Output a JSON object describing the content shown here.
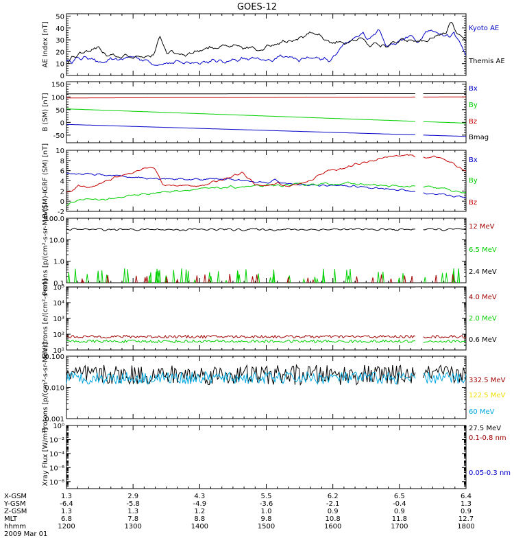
{
  "title": "GOES-12",
  "colors": {
    "black": "#000000",
    "blue": "#0000c8",
    "red": "#c80000",
    "green": "#00d000",
    "yellow": "#f0e000",
    "cyan": "#00a8e0",
    "darkred": "#a00000"
  },
  "chart_data": [
    {
      "type": "line",
      "ylabel": "AE Index [nT]",
      "yticks": [
        "0",
        "10",
        "20",
        "30",
        "40",
        "50"
      ],
      "ylim": [
        0,
        52
      ],
      "x_hours": [
        12.0,
        18.0
      ],
      "series": [
        {
          "name": "Kyoto AE",
          "color": "blue",
          "pattern": "kyoto"
        },
        {
          "name": "Themis AE",
          "color": "black",
          "pattern": "themis"
        }
      ]
    },
    {
      "type": "line",
      "ylabel": "B (SM) [nT]",
      "yticks": [
        "-50",
        "0",
        "50",
        "100",
        "150"
      ],
      "ylim": [
        -80,
        160
      ],
      "series": [
        {
          "name": "Bx",
          "color": "blue",
          "start": -8,
          "end": -55
        },
        {
          "name": "By",
          "color": "green",
          "start": 53,
          "end": -3
        },
        {
          "name": "Bz",
          "color": "red",
          "start": 96,
          "end": 100
        },
        {
          "name": "Bmag",
          "color": "black",
          "start": 112,
          "end": 113
        }
      ]
    },
    {
      "type": "line",
      "ylabel": "B (SM)-IGRF (SM) [nT]",
      "yticks": [
        "-2",
        "0",
        "2",
        "4",
        "6",
        "8",
        "10"
      ],
      "ylim": [
        -2,
        10
      ],
      "series": [
        {
          "name": "Bx",
          "color": "blue",
          "pattern": "dbx"
        },
        {
          "name": "By",
          "color": "green",
          "pattern": "dby"
        },
        {
          "name": "Bz",
          "color": "red",
          "pattern": "dbz"
        }
      ]
    },
    {
      "type": "line",
      "yscale": "log",
      "ylabel": "Protons [p/(cm²-s-sr-MeV)]",
      "yticks": [
        "0.1",
        "1.0",
        "10.0",
        "100.0"
      ],
      "ylim": [
        0.1,
        100
      ],
      "series": [
        {
          "name": "12 MeV",
          "color": "darkred"
        },
        {
          "name": "6.5 MeV",
          "color": "green"
        },
        {
          "name": "2.4 MeV",
          "color": "black",
          "level": 30
        }
      ]
    },
    {
      "type": "line",
      "yscale": "log",
      "ylabel": "Electrons [e/(cm²-s-sr)]",
      "yticks": [
        "10¹",
        "10²",
        "10³",
        "10⁴",
        "10⁵"
      ],
      "ylim": [
        10,
        100000
      ],
      "series": [
        {
          "name": "4.0 MeV",
          "color": "darkred",
          "level": 70
        },
        {
          "name": "2.0 MeV",
          "color": "green",
          "level": 35
        },
        {
          "name": "0.6 MeV",
          "color": "black",
          "level": 100000
        }
      ]
    },
    {
      "type": "line",
      "yscale": "log",
      "ylabel": "Protons [p/(cm²-s-sr-MeV)]",
      "yticks": [
        "0.001",
        "0.010",
        "0.100"
      ],
      "ylim": [
        0.001,
        0.1
      ],
      "series": [
        {
          "name": "332.5 MeV",
          "color": "darkred"
        },
        {
          "name": "122.5 MeV",
          "color": "yellow"
        },
        {
          "name": "60 MeV",
          "color": "cyan",
          "level": 0.02
        },
        {
          "name": "27.5 MeV",
          "color": "black",
          "level": 0.025
        }
      ]
    },
    {
      "type": "line",
      "yscale": "log",
      "ylabel": "Xray Flux [W/m²]",
      "yticks": [
        "10⁻⁸",
        "10⁻⁶",
        "10⁻⁴",
        "10⁻²",
        "10⁰"
      ],
      "ylim": [
        1e-09,
        1
      ],
      "series": [
        {
          "name": "0.1-0.8 nm",
          "color": "darkred"
        },
        {
          "name": "0.05-0.3 nm",
          "color": "blue"
        }
      ]
    }
  ],
  "orbit_table": {
    "rows": [
      {
        "label": "X-GSM",
        "values": [
          "1.3",
          "2.9",
          "4.3",
          "5.5",
          "6.2",
          "6.5",
          "6.4"
        ]
      },
      {
        "label": "Y-GSM",
        "values": [
          "-6.4",
          "-5.8",
          "-4.9",
          "-3.6",
          "-2.1",
          "-0.4",
          "1.3"
        ]
      },
      {
        "label": "Z-GSM",
        "values": [
          "1.3",
          "1.3",
          "1.2",
          "1.0",
          "0.9",
          "0.9",
          "0.9"
        ]
      },
      {
        "label": "MLT",
        "values": [
          "6.8",
          "7.8",
          "8.8",
          "9.8",
          "10.8",
          "11.8",
          "12.7"
        ]
      },
      {
        "label": "hhmm",
        "values": [
          "1200",
          "1300",
          "1400",
          "1500",
          "1600",
          "1700",
          "1800"
        ]
      }
    ],
    "date": "2009 Mar 01"
  }
}
